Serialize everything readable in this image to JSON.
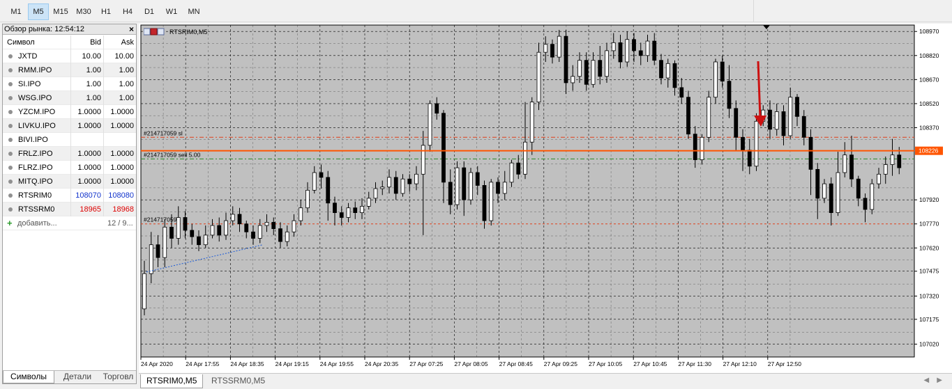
{
  "timeframes": [
    {
      "label": "M1",
      "active": false
    },
    {
      "label": "M5",
      "active": true
    },
    {
      "label": "M15",
      "active": false
    },
    {
      "label": "M30",
      "active": false
    },
    {
      "label": "H1",
      "active": false
    },
    {
      "label": "H4",
      "active": false
    },
    {
      "label": "D1",
      "active": false
    },
    {
      "label": "W1",
      "active": false
    },
    {
      "label": "MN",
      "active": false
    }
  ],
  "market_watch": {
    "title": "Обзор рынка: 12:54:12",
    "close_glyph": "×",
    "headers": {
      "symbol": "Символ",
      "bid": "Bid",
      "ask": "Ask"
    },
    "rows": [
      {
        "symbol": "JXTD",
        "bid": "10.00",
        "ask": "10.00",
        "color": ""
      },
      {
        "symbol": "RMM.IPO",
        "bid": "1.00",
        "ask": "1.00",
        "color": ""
      },
      {
        "symbol": "SI.IPO",
        "bid": "1.00",
        "ask": "1.00",
        "color": ""
      },
      {
        "symbol": "WSG.IPO",
        "bid": "1.00",
        "ask": "1.00",
        "color": ""
      },
      {
        "symbol": "YZCM.IPO",
        "bid": "1.0000",
        "ask": "1.0000",
        "color": ""
      },
      {
        "symbol": "LIVKU.IPO",
        "bid": "1.0000",
        "ask": "1.0000",
        "color": ""
      },
      {
        "symbol": "BIVI.IPO",
        "bid": "",
        "ask": "",
        "color": ""
      },
      {
        "symbol": "FRLZ.IPO",
        "bid": "1.0000",
        "ask": "1.0000",
        "color": ""
      },
      {
        "symbol": "FLRZ.IPO",
        "bid": "1.0000",
        "ask": "1.0000",
        "color": ""
      },
      {
        "symbol": "MITQ.IPO",
        "bid": "1.0000",
        "ask": "1.0000",
        "color": ""
      },
      {
        "symbol": "RTSRIM0",
        "bid": "108070",
        "ask": "108080",
        "color": "blue"
      },
      {
        "symbol": "RTSSRM0",
        "bid": "18965",
        "ask": "18968",
        "color": "red"
      }
    ],
    "add_label": "добавить...",
    "count": "12 / 9...",
    "tabs": [
      "Символы",
      "Детали",
      "Торговл"
    ]
  },
  "chart": {
    "title": "RTSRIM0,M5",
    "background": "#c0c0c0",
    "grid_color": "#000000",
    "current_price": "108226",
    "current_price_color": "#ff5500",
    "order_labels": {
      "stop": "#214717059 sl",
      "sell": "#214717059 sell 5.00",
      "tp": "#214717059"
    },
    "order_prices": {
      "stop": 108310,
      "sell": 108175,
      "tp": 107770
    },
    "price_ticks": [
      "108970",
      "108820",
      "108670",
      "108520",
      "108370",
      "107920",
      "107770",
      "107620",
      "107475",
      "107320",
      "107175",
      "107020"
    ],
    "time_ticks": [
      "24 Apr 2020",
      "24 Apr 17:55",
      "24 Apr 18:35",
      "24 Apr 19:15",
      "24 Apr 19:55",
      "24 Apr 20:35",
      "27 Apr 07:25",
      "27 Apr 08:05",
      "27 Apr 08:45",
      "27 Apr 09:25",
      "27 Apr 10:05",
      "27 Apr 10:45",
      "27 Apr 11:30",
      "27 Apr 12:10",
      "27 Apr 12:50"
    ],
    "arrow_color": "#cc1111"
  },
  "chart_data": {
    "type": "candlestick",
    "symbol": "RTSRIM0",
    "timeframe": "M5",
    "ylim": [
      106940,
      109010
    ],
    "candles": [
      [
        107240,
        107460,
        107200,
        107540
      ],
      [
        107460,
        107640,
        107400,
        107720
      ],
      [
        107640,
        107560,
        107500,
        107700
      ],
      [
        107560,
        107750,
        107500,
        107800
      ],
      [
        107750,
        107680,
        107620,
        107830
      ],
      [
        107680,
        107810,
        107640,
        107880
      ],
      [
        107810,
        107730,
        107680,
        107850
      ],
      [
        107730,
        107690,
        107640,
        107770
      ],
      [
        107690,
        107640,
        107600,
        107730
      ],
      [
        107640,
        107700,
        107620,
        107760
      ],
      [
        107700,
        107760,
        107680,
        107800
      ],
      [
        107760,
        107700,
        107660,
        107810
      ],
      [
        107700,
        107790,
        107670,
        107840
      ],
      [
        107790,
        107830,
        107760,
        107880
      ],
      [
        107830,
        107770,
        107720,
        107870
      ],
      [
        107770,
        107720,
        107680,
        107790
      ],
      [
        107720,
        107680,
        107640,
        107760
      ],
      [
        107680,
        107760,
        107650,
        107800
      ],
      [
        107760,
        107780,
        107720,
        107830
      ],
      [
        107780,
        107740,
        107700,
        107810
      ],
      [
        107740,
        107660,
        107620,
        107780
      ],
      [
        107660,
        107720,
        107630,
        107760
      ],
      [
        107720,
        107790,
        107690,
        107830
      ],
      [
        107790,
        107870,
        107760,
        107920
      ],
      [
        107870,
        107980,
        107840,
        108030
      ],
      [
        107980,
        108090,
        107960,
        108130
      ],
      [
        108090,
        108060,
        107990,
        108140
      ],
      [
        108060,
        107900,
        107790,
        108100
      ],
      [
        107900,
        107840,
        107760,
        107940
      ],
      [
        107840,
        107810,
        107760,
        107880
      ],
      [
        107810,
        107870,
        107780,
        107900
      ],
      [
        107870,
        107840,
        107800,
        107910
      ],
      [
        107840,
        107880,
        107800,
        107930
      ],
      [
        107880,
        107930,
        107860,
        107970
      ],
      [
        107930,
        107990,
        107900,
        108030
      ],
      [
        107990,
        108000,
        107950,
        108040
      ],
      [
        108000,
        108060,
        107960,
        108110
      ],
      [
        108060,
        107960,
        107920,
        108100
      ],
      [
        107960,
        108050,
        107940,
        108080
      ],
      [
        108050,
        108020,
        107970,
        108080
      ],
      [
        108020,
        108080,
        107980,
        108130
      ],
      [
        108080,
        108260,
        107700,
        108350
      ],
      [
        108260,
        108520,
        108220,
        108540
      ],
      [
        108520,
        108460,
        108420,
        108560
      ],
      [
        108460,
        108030,
        107900,
        108480
      ],
      [
        108030,
        107890,
        107830,
        108110
      ],
      [
        107890,
        108120,
        107860,
        108160
      ],
      [
        108120,
        107920,
        107820,
        108160
      ],
      [
        107920,
        108090,
        107890,
        108120
      ],
      [
        108090,
        108010,
        107950,
        108130
      ],
      [
        108010,
        107790,
        107740,
        108040
      ],
      [
        107790,
        108030,
        107760,
        108050
      ],
      [
        108030,
        107960,
        107900,
        108060
      ],
      [
        107960,
        108030,
        107920,
        108100
      ],
      [
        108030,
        108150,
        108000,
        108170
      ],
      [
        108150,
        108080,
        108050,
        108200
      ],
      [
        108080,
        108280,
        108050,
        108530
      ],
      [
        108280,
        108530,
        108200,
        108560
      ],
      [
        108530,
        108840,
        108480,
        108900
      ],
      [
        108840,
        108890,
        108780,
        108940
      ],
      [
        108890,
        108810,
        108770,
        108920
      ],
      [
        108810,
        108940,
        108780,
        108980
      ],
      [
        108940,
        108650,
        108580,
        108980
      ],
      [
        108650,
        108690,
        108600,
        108760
      ],
      [
        108690,
        108790,
        108650,
        108840
      ],
      [
        108790,
        108640,
        108600,
        108840
      ],
      [
        108640,
        108790,
        108620,
        108840
      ],
      [
        108790,
        108690,
        108640,
        108880
      ],
      [
        108690,
        108850,
        108650,
        108900
      ],
      [
        108850,
        108900,
        108800,
        108960
      ],
      [
        108900,
        108780,
        108740,
        108950
      ],
      [
        108780,
        108920,
        108750,
        108970
      ],
      [
        108920,
        108850,
        108780,
        108960
      ],
      [
        108850,
        108820,
        108760,
        108900
      ],
      [
        108820,
        108910,
        108780,
        108950
      ],
      [
        108910,
        108790,
        108760,
        108960
      ],
      [
        108790,
        108680,
        108640,
        108830
      ],
      [
        108680,
        108770,
        108620,
        108800
      ],
      [
        108770,
        108620,
        108570,
        108790
      ],
      [
        108620,
        108560,
        108520,
        108680
      ],
      [
        108560,
        108330,
        108300,
        108600
      ],
      [
        108330,
        108170,
        108120,
        108380
      ],
      [
        108170,
        108310,
        108140,
        108330
      ],
      [
        108310,
        108560,
        108280,
        108600
      ],
      [
        108560,
        108780,
        108520,
        108800
      ],
      [
        108780,
        108660,
        108620,
        108820
      ],
      [
        108660,
        108490,
        108430,
        108760
      ],
      [
        108490,
        108310,
        108230,
        108540
      ],
      [
        108310,
        108230,
        108100,
        108360
      ],
      [
        108230,
        108130,
        108080,
        108300
      ],
      [
        108130,
        108410,
        108100,
        108460
      ],
      [
        108410,
        108480,
        108380,
        108510
      ],
      [
        108480,
        108360,
        108300,
        108540
      ],
      [
        108360,
        108470,
        108320,
        108520
      ],
      [
        108470,
        108320,
        108260,
        108510
      ],
      [
        108320,
        108560,
        108300,
        108620
      ],
      [
        108560,
        108440,
        108380,
        108580
      ],
      [
        108440,
        108310,
        108260,
        108480
      ],
      [
        108310,
        108110,
        107950,
        108360
      ],
      [
        108110,
        107930,
        107800,
        108150
      ],
      [
        107930,
        108020,
        107900,
        108050
      ],
      [
        108020,
        107840,
        107760,
        108060
      ],
      [
        107840,
        108090,
        107820,
        108220
      ],
      [
        108090,
        108200,
        108060,
        108280
      ],
      [
        108200,
        108050,
        108000,
        108320
      ],
      [
        108050,
        107930,
        107880,
        108070
      ],
      [
        107930,
        107860,
        107780,
        107960
      ],
      [
        107860,
        108020,
        107830,
        108050
      ],
      [
        108020,
        108080,
        107990,
        108120
      ],
      [
        108080,
        108140,
        108020,
        108190
      ],
      [
        108140,
        108200,
        108070,
        108300
      ],
      [
        108200,
        108120,
        108080,
        108250
      ]
    ]
  }
}
